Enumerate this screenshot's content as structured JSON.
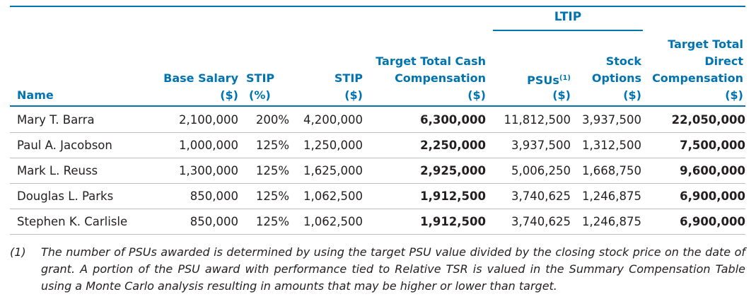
{
  "group_header": "LTIP",
  "columns": {
    "name": "Name",
    "base_salary_1": "Base Salary",
    "base_salary_2": "($)",
    "stip_pct_1": "STIP",
    "stip_pct_2": "(%)",
    "stip_amt_1": "STIP",
    "stip_amt_2": "($)",
    "target_cash_1": "Target Total Cash",
    "target_cash_2": "Compensation",
    "target_cash_3": "($)",
    "psus_1": "PSUs",
    "psus_sup": "(1)",
    "psus_2": "($)",
    "stock_1": "Stock",
    "stock_2": "Options",
    "stock_3": "($)",
    "direct_1": "Target Total",
    "direct_2": "Direct",
    "direct_3": "Compensation",
    "direct_4": "($)"
  },
  "rows": [
    {
      "name": "Mary T. Barra",
      "base": "2,100,000",
      "stip_pct": "200%",
      "stip_amt": "4,200,000",
      "cash": "6,300,000",
      "psus": "11,812,500",
      "options": "3,937,500",
      "direct": "22,050,000"
    },
    {
      "name": "Paul A. Jacobson",
      "base": "1,000,000",
      "stip_pct": "125%",
      "stip_amt": "1,250,000",
      "cash": "2,250,000",
      "psus": "3,937,500",
      "options": "1,312,500",
      "direct": "7,500,000"
    },
    {
      "name": "Mark L. Reuss",
      "base": "1,300,000",
      "stip_pct": "125%",
      "stip_amt": "1,625,000",
      "cash": "2,925,000",
      "psus": "5,006,250",
      "options": "1,668,750",
      "direct": "9,600,000"
    },
    {
      "name": "Douglas L. Parks",
      "base": "850,000",
      "stip_pct": "125%",
      "stip_amt": "1,062,500",
      "cash": "1,912,500",
      "psus": "3,740,625",
      "options": "1,246,875",
      "direct": "6,900,000"
    },
    {
      "name": "Stephen K. Carlisle",
      "base": "850,000",
      "stip_pct": "125%",
      "stip_amt": "1,062,500",
      "cash": "1,912,500",
      "psus": "3,740,625",
      "options": "1,246,875",
      "direct": "6,900,000"
    }
  ],
  "footnote": {
    "mark": "(1)",
    "text": "The number of PSUs awarded is determined by using the target PSU value divided by the closing stock price on the date of grant. A portion of the PSU award with performance tied to Relative TSR is valued in the Summary Compensation Table using a Monte Carlo analysis resulting in amounts that may be higher or lower than target."
  },
  "colors": {
    "accent": "#0073b1",
    "text": "#231f20",
    "row_rule": "#bcbec0"
  }
}
